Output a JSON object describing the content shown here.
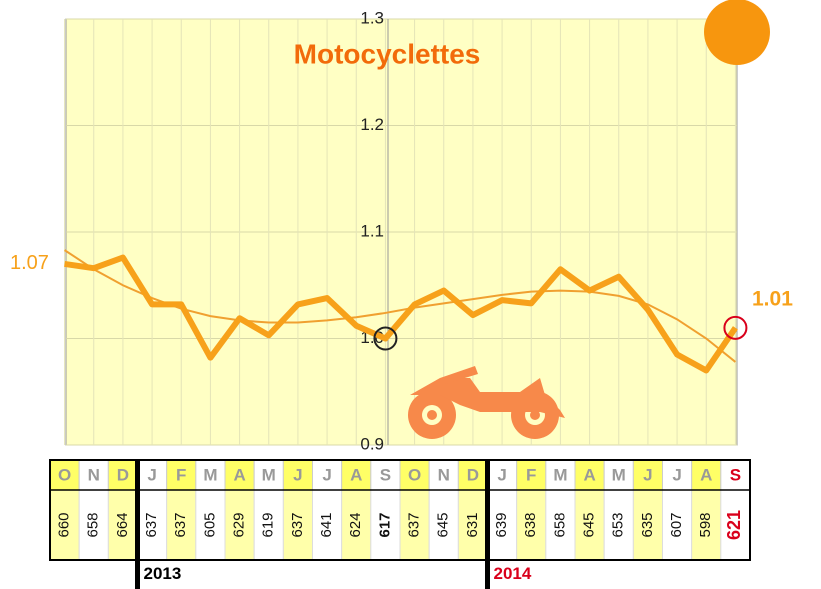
{
  "chart_data": {
    "type": "line",
    "title": "Motocyclettes",
    "categories": [
      "O",
      "N",
      "D",
      "J",
      "F",
      "M",
      "A",
      "M",
      "J",
      "J",
      "A",
      "S",
      "O",
      "N",
      "D",
      "J",
      "F",
      "M",
      "A",
      "M",
      "J",
      "J",
      "A",
      "S"
    ],
    "series": [
      {
        "color": "#f7a11a",
        "values": [
          1.07,
          1.066,
          1.076,
          1.032,
          1.032,
          0.982,
          1.019,
          1.003,
          1.032,
          1.038,
          1.012,
          1.0,
          1.032,
          1.045,
          1.022,
          1.036,
          1.033,
          1.065,
          1.045,
          1.058,
          1.027,
          0.985,
          0.97,
          1.01
        ]
      }
    ],
    "trend": {
      "color": "#f0a030",
      "values": [
        1.083,
        1.065,
        1.05,
        1.038,
        1.028,
        1.021,
        1.017,
        1.015,
        1.015,
        1.017,
        1.02,
        1.024,
        1.029,
        1.033,
        1.037,
        1.041,
        1.044,
        1.045,
        1.044,
        1.04,
        1.032,
        1.018,
        1.0,
        0.978
      ]
    },
    "ylim": [
      0.9,
      1.3
    ],
    "yticks": [
      0.9,
      {
        "value": 1,
        "label": "1.0"
      },
      1.1,
      1.2,
      1.3
    ],
    "grid": true,
    "table": {
      "counts": [
        660,
        658,
        664,
        637,
        637,
        605,
        629,
        619,
        637,
        641,
        624,
        617,
        637,
        645,
        631,
        639,
        638,
        658,
        645,
        653,
        635,
        607,
        598,
        621
      ],
      "years": [
        null,
        null,
        null,
        "2013",
        null,
        null,
        null,
        null,
        null,
        null,
        null,
        null,
        null,
        null,
        null,
        "2014",
        null,
        null,
        null,
        null,
        null,
        null,
        null,
        null
      ]
    }
  }
}
